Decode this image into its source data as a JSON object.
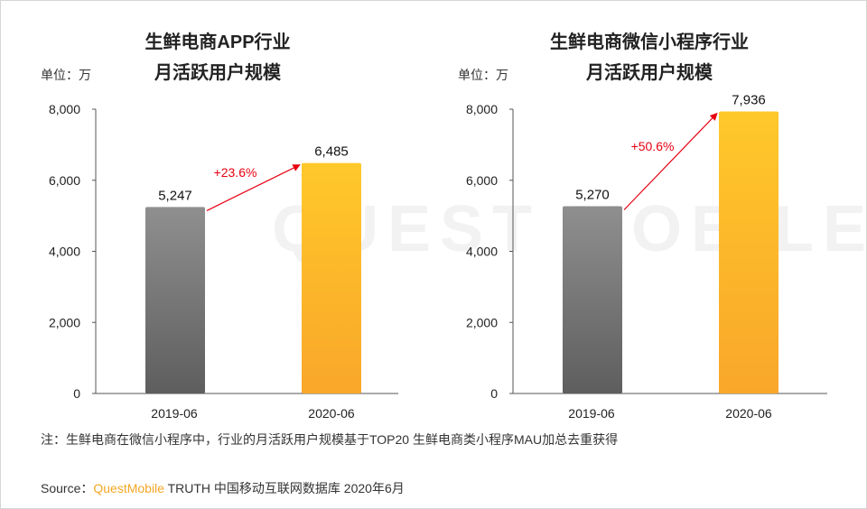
{
  "watermark": "QUEST MOBILE",
  "footnote": "注：生鲜电商在微信小程序中，行业的月活跃用户规模基于TOP20 生鲜电商类小程序MAU加总去重获得",
  "source": {
    "prefix": "Source：",
    "brand": "QuestMobile",
    "suffix": " TRUTH 中国移动互联网数据库 2020年6月"
  },
  "colors": {
    "bar_2019": "#707070",
    "bar_2020": "#fbb829",
    "growth": "#e60012"
  },
  "chart_data": [
    {
      "type": "bar",
      "title_line1": "生鲜电商APP行业",
      "title_line2": "月活跃用户规模",
      "unit_label": "单位：万",
      "categories": [
        "2019-06",
        "2020-06"
      ],
      "values": [
        5247,
        6485
      ],
      "value_labels": [
        "5,247",
        "6,485"
      ],
      "y_ticks": [
        "0",
        "2,000",
        "4,000",
        "6,000",
        "8,000"
      ],
      "ylim": [
        0,
        8000
      ],
      "growth_label": "+23.6%",
      "grid": false
    },
    {
      "type": "bar",
      "title_line1": "生鲜电商微信小程序行业",
      "title_line2": "月活跃用户规模",
      "unit_label": "单位：万",
      "categories": [
        "2019-06",
        "2020-06"
      ],
      "values": [
        5270,
        7936
      ],
      "value_labels": [
        "5,270",
        "7,936"
      ],
      "y_ticks": [
        "0",
        "2,000",
        "4,000",
        "6,000",
        "8,000"
      ],
      "ylim": [
        0,
        8000
      ],
      "growth_label": "+50.6%",
      "grid": false
    }
  ]
}
